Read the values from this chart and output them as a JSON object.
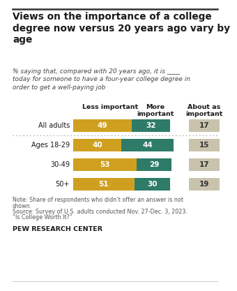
{
  "title": "Views on the importance of a college\ndegree now versus 20 years ago vary by\nage",
  "subtitle": "% saying that, compared with 20 years ago, it is ____\ntoday for someone to have a four-year college degree in\norder to get a well-paying job",
  "categories": [
    "All adults",
    "Ages 18-29",
    "30-49",
    "50+"
  ],
  "less_important": [
    49,
    40,
    53,
    51
  ],
  "more_important": [
    32,
    44,
    29,
    30
  ],
  "about_as_important": [
    17,
    15,
    17,
    19
  ],
  "color_less": "#CFA020",
  "color_more": "#2D7B68",
  "color_about": "#C9C3AD",
  "note_line1": "Note: Share of respondents who didn’t offer an answer is not",
  "note_line2": "shown.",
  "note_line3": "Source: Survey of U.S. adults conducted Nov. 27-Dec. 3, 2023.",
  "note_line4": "“Is College Worth It?”",
  "footer": "PEW RESEARCH CENTER",
  "bg_color": "#FFFFFF",
  "title_color": "#1a1a1a",
  "subtitle_color": "#444444",
  "note_color": "#555555",
  "bar_label_color_dark": "#333333",
  "bar_text_color_white": "#FFFFFF"
}
